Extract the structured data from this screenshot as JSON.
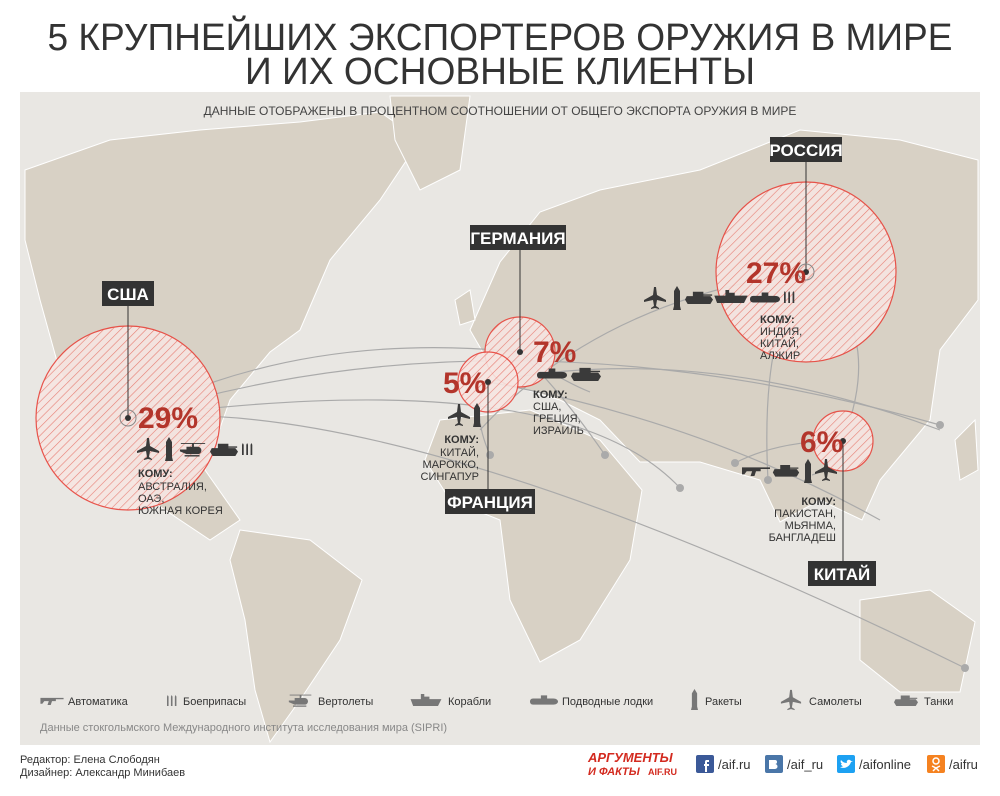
{
  "title": [
    "5 КРУПНЕЙШИХ ЭКСПОРТЕРОВ ОРУЖИЯ В МИРЕ",
    "И ИХ ОСНОВНЫЕ КЛИЕНТЫ"
  ],
  "subtitle": "ДАННЫЕ ОТОБРАЖЕНЫ В ПРОЦЕНТНОМ СООТНОШЕНИИ ОТ ОБЩЕГО ЭКСПОРТА ОРУЖИЯ В МИРЕ",
  "exporters": [
    {
      "name": "США",
      "share": "29%",
      "to": "КОМУ:",
      "clients": [
        "АВСТРАЛИЯ,",
        "ОАЭ,",
        "ЮЖНАЯ КОРЕЯ"
      ]
    },
    {
      "name": "ГЕРМАНИЯ",
      "share": "7%",
      "to": "КОМУ:",
      "clients": [
        "США,",
        "ГРЕЦИЯ,",
        "ИЗРАИЛЬ"
      ]
    },
    {
      "name": "ФРАНЦИЯ",
      "share": "5%",
      "to": "КОМУ:",
      "clients": [
        "КИТАЙ,",
        "МАРОККО,",
        "СИНГАПУР"
      ]
    },
    {
      "name": "РОССИЯ",
      "share": "27%",
      "to": "КОМУ:",
      "clients": [
        "ИНДИЯ,",
        "КИТАЙ,",
        "АЛЖИР"
      ]
    },
    {
      "name": "КИТАЙ",
      "share": "6%",
      "to": "КОМУ:",
      "clients": [
        "ПАКИСТАН,",
        "МЬЯНМА,",
        "БАНГЛАДЕШ"
      ]
    }
  ],
  "legend": [
    "Автоматика",
    "Боеприпасы",
    "Вертолеты",
    "Корабли",
    "Подводные лодки",
    "Ракеты",
    "Самолеты",
    "Танки"
  ],
  "source": "Данные стокгольмского Международного института исследования мира (SIPRI)",
  "credits": [
    "Редактор: Елена Слободян",
    "Дизайнер: Александр Минибаев"
  ],
  "brand": [
    "АРГУМЕНТЫ",
    "И ФАКТЫ",
    "AIF.RU"
  ],
  "social": [
    "/aif.ru",
    "/aif_ru",
    "/aifonline",
    "/aifru"
  ]
}
